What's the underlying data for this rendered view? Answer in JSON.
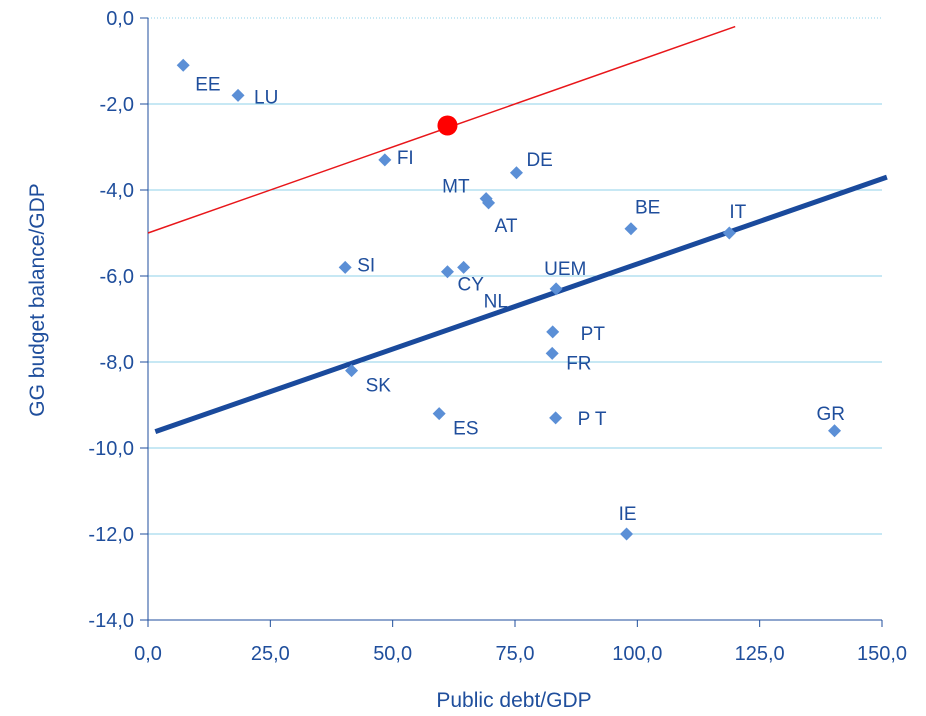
{
  "chart_data": {
    "type": "scatter",
    "xlabel": "Public debt/GDP",
    "ylabel": "GG budget balance/GDP",
    "xlim": [
      0,
      150
    ],
    "ylim": [
      -14,
      0
    ],
    "x_ticks": [
      0,
      25,
      50,
      75,
      100,
      125,
      150
    ],
    "y_ticks": [
      0,
      -2,
      -4,
      -6,
      -8,
      -10,
      -12,
      -14
    ],
    "x_tick_labels": [
      "0,0",
      "25,0",
      "50,0",
      "75,0",
      "100,0",
      "125,0",
      "150,0"
    ],
    "y_tick_labels": [
      "0,0",
      "-2,0",
      "-4,0",
      "-6,0",
      "-8,0",
      "-10,0",
      "-12,0",
      "-14,0"
    ],
    "grid": "horizontal dotted",
    "points": [
      {
        "label": "EE",
        "x": 7.2,
        "y": -1.1
      },
      {
        "label": "LU",
        "x": 18.4,
        "y": -1.8
      },
      {
        "label": "FI",
        "x": 48.4,
        "y": -3.3
      },
      {
        "label": "MT",
        "x": 69.1,
        "y": -4.2
      },
      {
        "label": "AT",
        "x": 69.6,
        "y": -4.3
      },
      {
        "label": "DE",
        "x": 75.3,
        "y": -3.6
      },
      {
        "label": "BE",
        "x": 98.7,
        "y": -4.9
      },
      {
        "label": "IT",
        "x": 118.8,
        "y": -5.0
      },
      {
        "label": "SI",
        "x": 40.3,
        "y": -5.8
      },
      {
        "label": "CY",
        "x": 61.2,
        "y": -5.9
      },
      {
        "label": "NL",
        "x": 64.5,
        "y": -5.8
      },
      {
        "label": "UEM",
        "x": 83.4,
        "y": -6.3
      },
      {
        "label": "PT",
        "x": 82.7,
        "y": -7.3
      },
      {
        "label": "FR",
        "x": 82.6,
        "y": -7.8
      },
      {
        "label": "SK",
        "x": 41.6,
        "y": -8.2
      },
      {
        "label": "ES",
        "x": 59.5,
        "y": -9.2
      },
      {
        "label": "P T",
        "x": 83.3,
        "y": -9.3
      },
      {
        "label": "GR",
        "x": 140.3,
        "y": -9.6
      },
      {
        "label": "IE",
        "x": 97.8,
        "y": -12.0
      }
    ],
    "lines": [
      {
        "color": "#e8161a",
        "x": [
          0,
          120
        ],
        "y": [
          -5.0,
          -0.2
        ]
      },
      {
        "color": "#1a4a9c",
        "x": [
          1.5,
          151
        ],
        "y": [
          -9.62,
          -3.7
        ]
      }
    ],
    "highlight": {
      "x": 61.2,
      "y": -2.5,
      "color": "#ff0000"
    },
    "colors": {
      "point": "#5b8fd6",
      "axis": "#1f4e9c",
      "grid": "#8fd0ea"
    }
  }
}
